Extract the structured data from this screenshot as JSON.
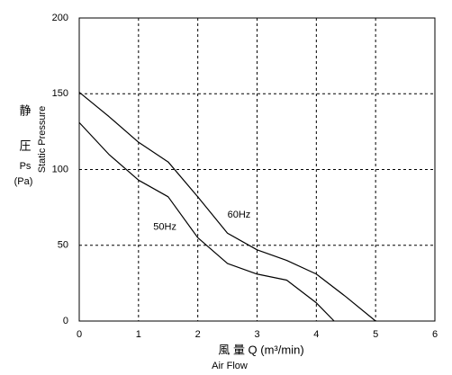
{
  "chart_data": {
    "type": "line",
    "x": [
      0,
      0.5,
      1,
      1.5,
      2,
      2.5,
      3,
      3.5,
      4,
      4.5,
      5
    ],
    "series": [
      {
        "name": "60Hz",
        "color": "#000000",
        "x": [
          0,
          0.5,
          1,
          1.5,
          2,
          2.5,
          3,
          3.5,
          4,
          4.5,
          5
        ],
        "values": [
          151,
          135,
          118,
          105,
          82,
          58,
          47,
          40,
          31,
          16,
          0
        ]
      },
      {
        "name": "50Hz",
        "color": "#000000",
        "x": [
          0,
          0.5,
          1,
          1.5,
          2,
          2.5,
          3,
          3.5,
          4,
          4.3
        ],
        "values": [
          131,
          110,
          93,
          82,
          55,
          38,
          31,
          27,
          12,
          0
        ]
      }
    ],
    "xlim": [
      0,
      6
    ],
    "xticks": [
      0,
      1,
      2,
      3,
      4,
      5,
      6
    ],
    "ylim": [
      0,
      200
    ],
    "yticks": [
      0,
      50,
      100,
      150,
      200
    ],
    "grid": true,
    "ylabel": [
      "静",
      "圧",
      "Ps",
      "(Pa)"
    ],
    "ylabel_en": "Static Pressure",
    "xlabel": "風 量 Q (m³/min)",
    "xlabel_en": "Air Flow"
  }
}
